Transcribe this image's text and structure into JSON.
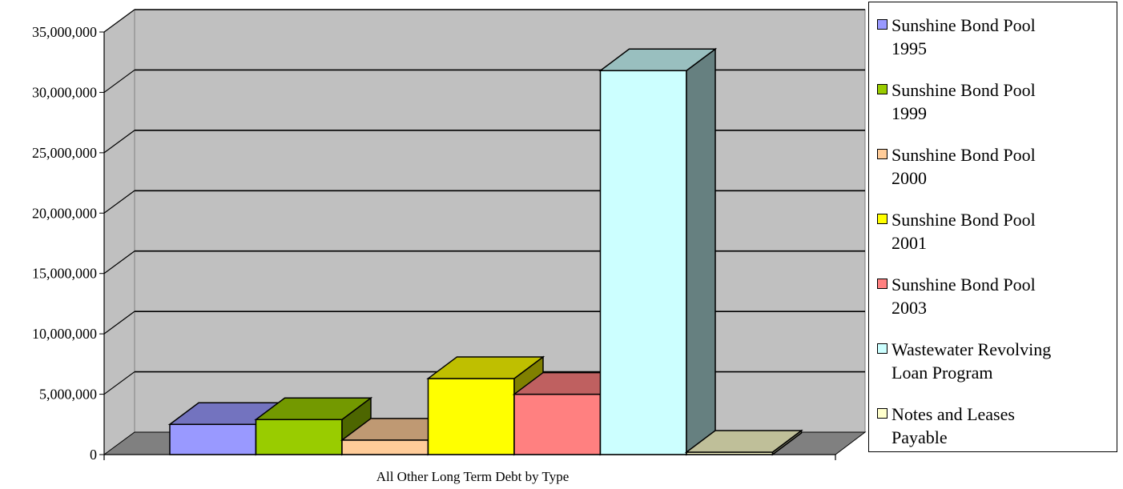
{
  "chart_data": {
    "type": "bar",
    "style": "3d-clustered-column",
    "title": "",
    "xlabel": "All Other Long Term Debt by Type",
    "ylabel": "",
    "ylim": [
      0,
      35000000
    ],
    "yticks": [
      0,
      5000000,
      10000000,
      15000000,
      20000000,
      25000000,
      30000000,
      35000000
    ],
    "ytick_labels": [
      "0",
      "5,000,000",
      "10,000,000",
      "15,000,000",
      "20,000,000",
      "25,000,000",
      "30,000,000",
      "35,000,000"
    ],
    "grid": true,
    "legend_position": "right",
    "categories": [
      "All Other Long Term Debt by Type"
    ],
    "series": [
      {
        "name": "Sunshine Bond Pool 1995",
        "values": [
          2500000
        ],
        "color": "#9999ff"
      },
      {
        "name": "Sunshine Bond Pool 1999",
        "values": [
          2900000
        ],
        "color": "#99cc00"
      },
      {
        "name": "Sunshine Bond Pool 2000",
        "values": [
          1200000
        ],
        "color": "#ffcc99"
      },
      {
        "name": "Sunshine Bond Pool 2001",
        "values": [
          6300000
        ],
        "color": "#ffff00"
      },
      {
        "name": "Sunshine Bond Pool 2003",
        "values": [
          5000000
        ],
        "color": "#ff8080"
      },
      {
        "name": "Wastewater Revolving Loan Program",
        "values": [
          31800000
        ],
        "color": "#ccffff"
      },
      {
        "name": "Notes and Leases Payable",
        "values": [
          200000
        ],
        "color": "#ffffcc"
      }
    ]
  },
  "legend": {
    "items": [
      {
        "line1": "Sunshine Bond Pool",
        "line2": "1995",
        "color": "#9999ff"
      },
      {
        "line1": "Sunshine Bond Pool",
        "line2": "1999",
        "color": "#99cc00"
      },
      {
        "line1": "Sunshine Bond Pool",
        "line2": "2000",
        "color": "#ffcc99"
      },
      {
        "line1": "Sunshine Bond Pool",
        "line2": "2001",
        "color": "#ffff00"
      },
      {
        "line1": "Sunshine Bond Pool",
        "line2": "2003",
        "color": "#ff8080"
      },
      {
        "line1": "Wastewater Revolving",
        "line2": "Loan Program",
        "color": "#ccffff"
      },
      {
        "line1": "Notes and Leases",
        "line2": "Payable",
        "color": "#ffffcc"
      }
    ]
  },
  "colors": {
    "wall": "#c0c0c0",
    "floor": "#808080",
    "gridline": "#000000"
  }
}
